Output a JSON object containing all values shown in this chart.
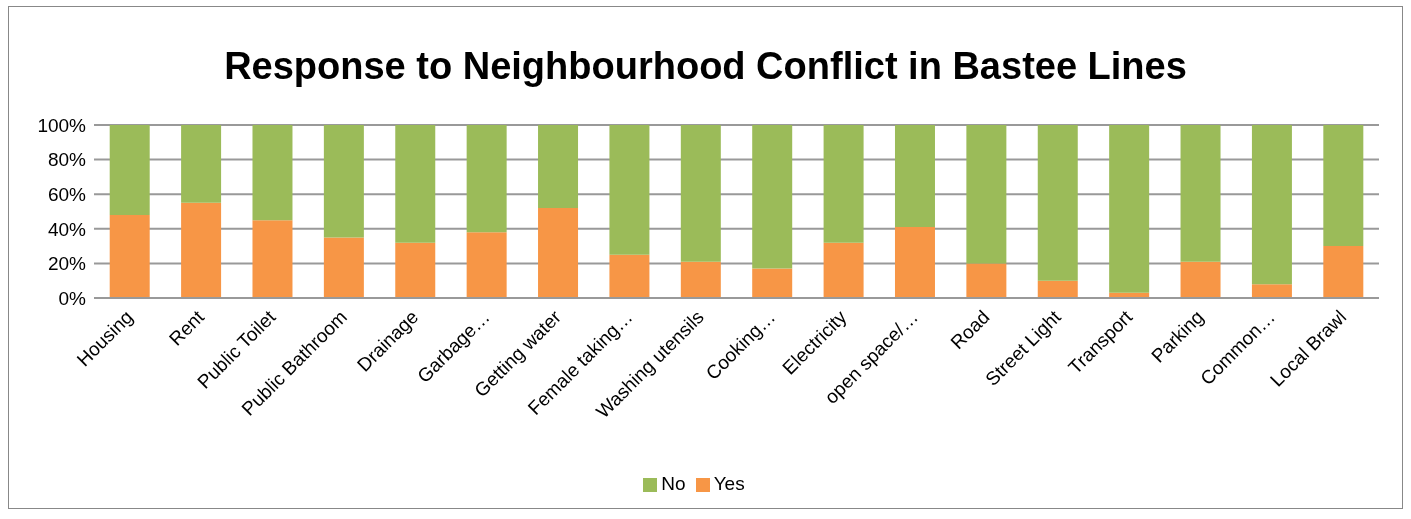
{
  "chart_data": {
    "type": "bar",
    "stacked": true,
    "title": "Response to Neighbourhood Conflict in Bastee Lines",
    "categories": [
      "Housing",
      "Rent",
      "Public Toilet",
      "Public Bathroom",
      "Drainage",
      "Garbage…",
      "Getting water",
      "Female taking…",
      "Washing utensils",
      "Cooking…",
      "Electricity",
      "open space/…",
      "Road",
      "Street Light",
      "Transport",
      "Parking",
      "Common…",
      "Local Brawl"
    ],
    "series": [
      {
        "name": "Yes",
        "color": "#f79646",
        "values": [
          48,
          55,
          45,
          35,
          32,
          38,
          52,
          25,
          21,
          17,
          32,
          41,
          20,
          10,
          3,
          21,
          8,
          30
        ]
      },
      {
        "name": "No",
        "color": "#9bbb59",
        "values": [
          52,
          45,
          55,
          65,
          68,
          62,
          48,
          75,
          79,
          83,
          68,
          59,
          80,
          90,
          97,
          79,
          92,
          70
        ]
      }
    ],
    "ylim": [
      0,
      100
    ],
    "yticks": [
      {
        "value": 0,
        "label": "0%"
      },
      {
        "value": 20,
        "label": "20%"
      },
      {
        "value": 40,
        "label": "40%"
      },
      {
        "value": 60,
        "label": "60%"
      },
      {
        "value": 80,
        "label": "80%"
      },
      {
        "value": 100,
        "label": "100%"
      }
    ],
    "grid": "y",
    "legend": "bottom"
  }
}
